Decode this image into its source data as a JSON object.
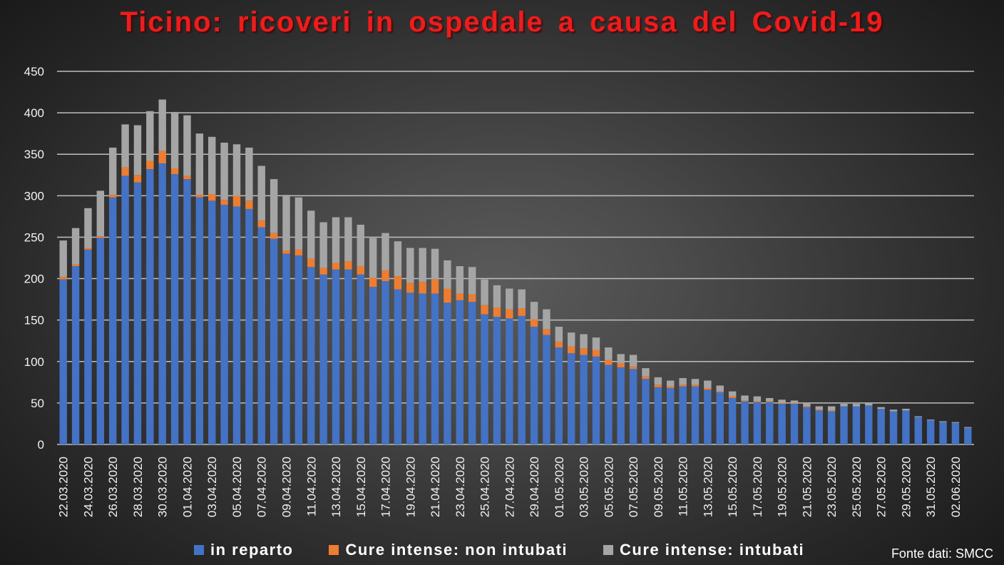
{
  "chart_data": {
    "type": "bar",
    "stacked": true,
    "title": "Ticino: ricoveri in ospedale a causa del Covid-19",
    "title_color": "#ee1c1c",
    "source": "Fonte dati: SMCC",
    "ylim": [
      0,
      450
    ],
    "yticks": [
      0,
      50,
      100,
      150,
      200,
      250,
      300,
      350,
      400,
      450
    ],
    "grid": true,
    "legend_position": "bottom",
    "categories": [
      "22.03.2020",
      "23.03.2020",
      "24.03.2020",
      "25.03.2020",
      "26.03.2020",
      "27.03.2020",
      "28.03.2020",
      "29.03.2020",
      "30.03.2020",
      "31.03.2020",
      "01.04.2020",
      "02.04.2020",
      "03.04.2020",
      "04.04.2020",
      "05.04.2020",
      "06.04.2020",
      "07.04.2020",
      "08.04.2020",
      "09.04.2020",
      "10.04.2020",
      "11.04.2020",
      "12.04.2020",
      "13.04.2020",
      "14.04.2020",
      "15.04.2020",
      "16.04.2020",
      "17.04.2020",
      "18.04.2020",
      "19.04.2020",
      "20.04.2020",
      "21.04.2020",
      "22.04.2020",
      "23.04.2020",
      "24.04.2020",
      "25.04.2020",
      "26.04.2020",
      "27.04.2020",
      "28.04.2020",
      "29.04.2020",
      "30.04.2020",
      "01.05.2020",
      "02.05.2020",
      "03.05.2020",
      "04.05.2020",
      "05.05.2020",
      "06.05.2020",
      "07.05.2020",
      "08.05.2020",
      "09.05.2020",
      "10.05.2020",
      "11.05.2020",
      "12.05.2020",
      "13.05.2020",
      "14.05.2020",
      "15.05.2020",
      "16.05.2020",
      "17.05.2020",
      "18.05.2020",
      "19.05.2020",
      "20.05.2020",
      "21.05.2020",
      "22.05.2020",
      "23.05.2020",
      "24.05.2020",
      "25.05.2020",
      "26.05.2020",
      "27.05.2020",
      "28.05.2020",
      "29.05.2020",
      "30.05.2020",
      "31.05.2020",
      "01.06.2020",
      "02.06.2020",
      "03.06.2020"
    ],
    "series": [
      {
        "name": "in reparto",
        "color": "#4472c4",
        "values": [
          199,
          215,
          235,
          249,
          298,
          324,
          316,
          332,
          339,
          326,
          320,
          298,
          294,
          289,
          287,
          284,
          262,
          248,
          230,
          228,
          214,
          205,
          211,
          211,
          205,
          190,
          197,
          187,
          183,
          182,
          182,
          171,
          174,
          172,
          157,
          154,
          152,
          155,
          142,
          132,
          117,
          110,
          108,
          106,
          96,
          93,
          91,
          79,
          69,
          68,
          70,
          70,
          66,
          63,
          56,
          52,
          51,
          51,
          49,
          49,
          45,
          41,
          40,
          46,
          46,
          47,
          43,
          40,
          41,
          33,
          29,
          27,
          26,
          20
        ]
      },
      {
        "name": "Cure intense: non intubati",
        "color": "#ed7d31",
        "values": [
          3,
          2,
          2,
          2,
          3,
          10,
          9,
          10,
          15,
          7,
          4,
          3,
          8,
          6,
          13,
          10,
          8,
          7,
          4,
          7,
          10,
          8,
          8,
          10,
          10,
          11,
          13,
          16,
          12,
          14,
          17,
          17,
          8,
          9,
          11,
          11,
          11,
          9,
          9,
          7,
          7,
          8,
          8,
          8,
          6,
          5,
          3,
          3,
          3,
          2,
          2,
          2,
          2,
          1,
          2,
          1,
          1,
          1,
          1,
          1,
          1,
          1,
          1,
          0,
          0,
          0,
          0,
          0,
          0,
          0,
          0,
          0,
          0,
          0
        ]
      },
      {
        "name": "Cure intense: intubati",
        "color": "#a5a5a5",
        "values": [
          44,
          44,
          48,
          55,
          57,
          52,
          60,
          60,
          62,
          68,
          73,
          74,
          69,
          69,
          62,
          64,
          66,
          65,
          67,
          63,
          58,
          55,
          55,
          53,
          50,
          48,
          45,
          42,
          42,
          41,
          37,
          34,
          33,
          33,
          31,
          27,
          25,
          23,
          21,
          24,
          18,
          17,
          17,
          15,
          15,
          11,
          14,
          10,
          9,
          7,
          8,
          7,
          9,
          7,
          6,
          6,
          6,
          4,
          4,
          3,
          4,
          4,
          5,
          3,
          3,
          3,
          2,
          2,
          2,
          1,
          1,
          1,
          1,
          1
        ]
      }
    ]
  }
}
